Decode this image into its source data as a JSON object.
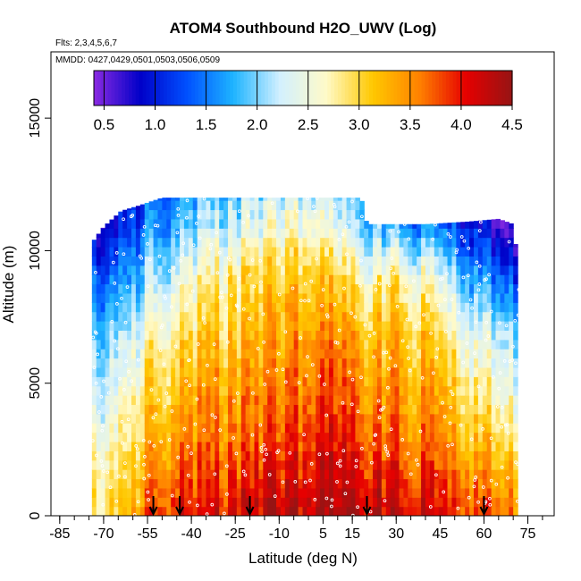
{
  "chart_data": {
    "type": "heatmap",
    "title": "ATOM4 Southbound H2O_UWV (Log)",
    "flights_note": "Flts: 2,3,4,5,6,7",
    "dates_note": "MMDD: 0427,0429,0501,0503,0506,0509",
    "xlabel": "Latitude (deg N)",
    "ylabel": "Altitude (m)",
    "xlim": [
      -88,
      84
    ],
    "ylim": [
      0,
      17500
    ],
    "x_ticks": [
      -85,
      -70,
      -55,
      -40,
      -25,
      -10,
      5,
      15,
      30,
      45,
      60,
      75
    ],
    "x_tick_labels": [
      "-85",
      "-70",
      "-55",
      "-40",
      "-25",
      "-10",
      "5",
      "15",
      "30",
      "45",
      "60",
      "75"
    ],
    "x_minor_step": 5,
    "y_ticks": [
      0,
      5000,
      10000,
      15000
    ],
    "y_tick_labels": [
      "0",
      "5000",
      "10000",
      "15000"
    ],
    "colorbar": {
      "min": 0.4,
      "max": 4.5,
      "ticks": [
        0.5,
        1.0,
        1.5,
        2.0,
        2.5,
        3.0,
        3.5,
        4.0,
        4.5
      ],
      "tick_labels": [
        "0.5",
        "1.0",
        "1.5",
        "2.0",
        "2.5",
        "3.0",
        "3.5",
        "4.0",
        "4.5"
      ],
      "colors": [
        "#8b2be2",
        "#0000c8",
        "#0050ff",
        "#1eb4ff",
        "#d2f0ff",
        "#fffac8",
        "#ffc800",
        "#ff8200",
        "#e60000",
        "#961414"
      ]
    },
    "arrow_latitudes": [
      -53,
      -44,
      -20,
      20,
      60
    ],
    "lat_profile": [
      {
        "lat": -74,
        "top": 10300
      },
      {
        "lat": -70,
        "top": 10900
      },
      {
        "lat": -64,
        "top": 11500
      },
      {
        "lat": -58,
        "top": 11700
      },
      {
        "lat": -50,
        "top": 12000
      },
      {
        "lat": -42,
        "top": 12000
      },
      {
        "lat": -30,
        "top": 12000
      },
      {
        "lat": -10,
        "top": 12000
      },
      {
        "lat": 0,
        "top": 12000
      },
      {
        "lat": 10,
        "top": 12000
      },
      {
        "lat": 18,
        "top": 12000
      },
      {
        "lat": 20,
        "top": 11000
      },
      {
        "lat": 40,
        "top": 11000
      },
      {
        "lat": 55,
        "top": 11100
      },
      {
        "lat": 65,
        "top": 11200
      },
      {
        "lat": 70,
        "top": 11000
      },
      {
        "lat": 72,
        "top": 9000
      }
    ],
    "field_anchors": [
      {
        "lat": -75,
        "alt": [
          [
            0,
            2.9
          ],
          [
            2000,
            2.7
          ],
          [
            4000,
            2.3
          ],
          [
            6000,
            2.0
          ],
          [
            8000,
            1.6
          ],
          [
            10000,
            1.0
          ]
        ]
      },
      {
        "lat": -62,
        "alt": [
          [
            0,
            3.3
          ],
          [
            2000,
            3.1
          ],
          [
            4000,
            2.8
          ],
          [
            6000,
            2.5
          ],
          [
            8000,
            2.0
          ],
          [
            10000,
            1.5
          ],
          [
            11500,
            1.2
          ]
        ]
      },
      {
        "lat": -50,
        "alt": [
          [
            0,
            3.9
          ],
          [
            1500,
            3.6
          ],
          [
            3000,
            3.3
          ],
          [
            5000,
            3.1
          ],
          [
            7000,
            2.7
          ],
          [
            9000,
            2.2
          ],
          [
            11000,
            1.6
          ],
          [
            12000,
            1.4
          ]
        ]
      },
      {
        "lat": -38,
        "alt": [
          [
            0,
            4.0
          ],
          [
            1500,
            3.8
          ],
          [
            3000,
            3.5
          ],
          [
            5000,
            3.3
          ],
          [
            7000,
            3.0
          ],
          [
            9000,
            2.6
          ],
          [
            11000,
            2.0
          ],
          [
            12000,
            1.8
          ]
        ]
      },
      {
        "lat": -25,
        "alt": [
          [
            0,
            4.1
          ],
          [
            1500,
            3.9
          ],
          [
            3000,
            3.6
          ],
          [
            5000,
            3.4
          ],
          [
            7000,
            3.1
          ],
          [
            9000,
            2.9
          ],
          [
            11000,
            2.3
          ],
          [
            12000,
            2.0
          ]
        ]
      },
      {
        "lat": -12,
        "alt": [
          [
            0,
            4.2
          ],
          [
            1500,
            4.0
          ],
          [
            3000,
            3.7
          ],
          [
            5000,
            3.5
          ],
          [
            7000,
            3.3
          ],
          [
            9000,
            3.0
          ],
          [
            11000,
            2.5
          ],
          [
            12000,
            2.2
          ]
        ]
      },
      {
        "lat": 0,
        "alt": [
          [
            0,
            4.3
          ],
          [
            1500,
            4.1
          ],
          [
            3000,
            3.9
          ],
          [
            5000,
            3.6
          ],
          [
            7000,
            3.4
          ],
          [
            9000,
            3.1
          ],
          [
            11000,
            2.6
          ],
          [
            12000,
            2.3
          ]
        ]
      },
      {
        "lat": 10,
        "alt": [
          [
            0,
            4.4
          ],
          [
            1500,
            4.2
          ],
          [
            3000,
            4.0
          ],
          [
            5000,
            3.8
          ],
          [
            7000,
            3.5
          ],
          [
            9000,
            3.0
          ],
          [
            11000,
            2.4
          ],
          [
            12000,
            2.1
          ]
        ]
      },
      {
        "lat": 20,
        "alt": [
          [
            0,
            4.3
          ],
          [
            1500,
            4.0
          ],
          [
            3000,
            3.7
          ],
          [
            5000,
            3.4
          ],
          [
            7000,
            3.1
          ],
          [
            9000,
            2.6
          ],
          [
            11000,
            1.9
          ]
        ]
      },
      {
        "lat": 32,
        "alt": [
          [
            0,
            4.2
          ],
          [
            1500,
            3.9
          ],
          [
            3000,
            3.6
          ],
          [
            5000,
            3.4
          ],
          [
            7000,
            3.2
          ],
          [
            9000,
            2.8
          ],
          [
            11000,
            1.7
          ]
        ]
      },
      {
        "lat": 45,
        "alt": [
          [
            0,
            4.0
          ],
          [
            1500,
            3.8
          ],
          [
            3000,
            3.5
          ],
          [
            5000,
            3.2
          ],
          [
            7000,
            2.9
          ],
          [
            9000,
            2.3
          ],
          [
            11000,
            1.4
          ]
        ]
      },
      {
        "lat": 58,
        "alt": [
          [
            0,
            3.9
          ],
          [
            1500,
            3.6
          ],
          [
            3000,
            3.2
          ],
          [
            5000,
            2.8
          ],
          [
            7000,
            2.4
          ],
          [
            9000,
            1.7
          ],
          [
            11000,
            1.0
          ]
        ]
      },
      {
        "lat": 72,
        "alt": [
          [
            0,
            3.4
          ],
          [
            1500,
            3.1
          ],
          [
            3000,
            2.7
          ],
          [
            5000,
            2.3
          ],
          [
            7000,
            1.9
          ],
          [
            9000,
            1.1
          ]
        ]
      }
    ]
  }
}
